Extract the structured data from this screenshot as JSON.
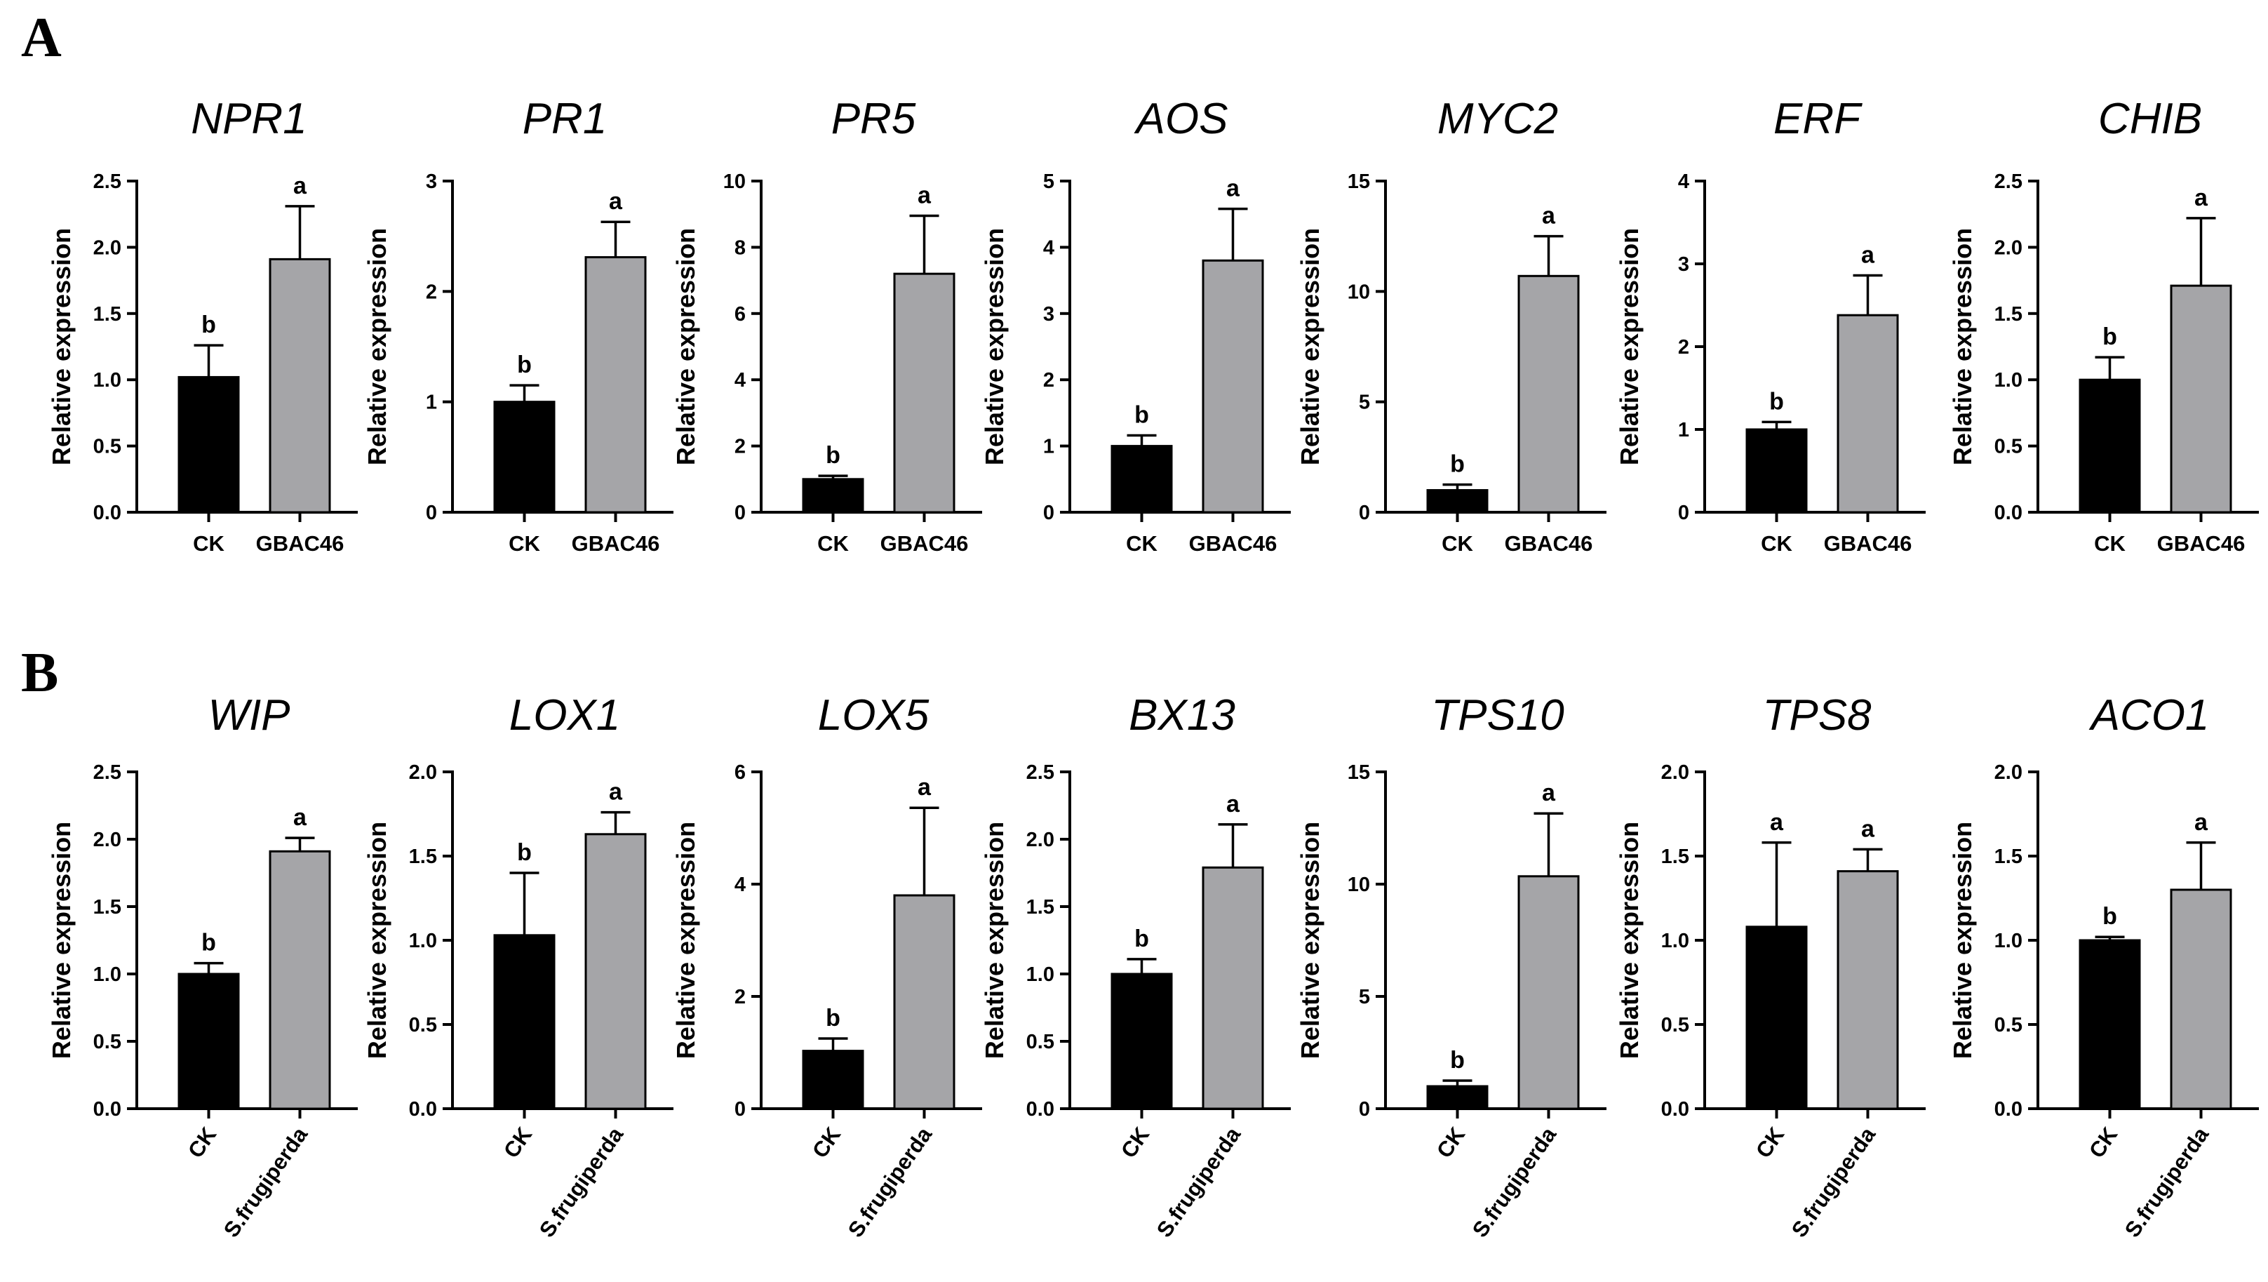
{
  "panels": [
    {
      "label": "A"
    },
    {
      "label": "B"
    }
  ],
  "axis_label": "Relative expression",
  "colors": {
    "CK": "#000000",
    "treatment": "#a5a5a8",
    "axis": "#000000"
  },
  "chart_data": [
    {
      "type": "bar",
      "panel": "A",
      "title": "NPR1",
      "ylabel": "Relative expression",
      "categories": [
        "CK",
        "GBAC46"
      ],
      "values": [
        1.02,
        1.91
      ],
      "errors": [
        0.24,
        0.4
      ],
      "significance": [
        "b",
        "a"
      ],
      "ylim": [
        0,
        2.5
      ],
      "yticks": [
        "0.0",
        "0.5",
        "1.0",
        "1.5",
        "2.0",
        "2.5"
      ],
      "xlabel_rotated": false
    },
    {
      "type": "bar",
      "panel": "A",
      "title": "PR1",
      "ylabel": "Relative expression",
      "categories": [
        "CK",
        "GBAC46"
      ],
      "values": [
        1.0,
        2.31
      ],
      "errors": [
        0.15,
        0.32
      ],
      "significance": [
        "b",
        "a"
      ],
      "ylim": [
        0,
        3
      ],
      "yticks": [
        "0",
        "1",
        "2",
        "3"
      ],
      "xlabel_rotated": false
    },
    {
      "type": "bar",
      "panel": "A",
      "title": "PR5",
      "ylabel": "Relative expression",
      "categories": [
        "CK",
        "GBAC46"
      ],
      "values": [
        1.0,
        7.2
      ],
      "errors": [
        0.1,
        1.75
      ],
      "significance": [
        "b",
        "a"
      ],
      "ylim": [
        0,
        10
      ],
      "yticks": [
        "0",
        "2",
        "4",
        "6",
        "8",
        "10"
      ],
      "xlabel_rotated": false
    },
    {
      "type": "bar",
      "panel": "A",
      "title": "AOS",
      "ylabel": "Relative expression",
      "categories": [
        "CK",
        "GBAC46"
      ],
      "values": [
        1.0,
        3.8
      ],
      "errors": [
        0.16,
        0.78
      ],
      "significance": [
        "b",
        "a"
      ],
      "ylim": [
        0,
        5
      ],
      "yticks": [
        "0",
        "1",
        "2",
        "3",
        "4",
        "5"
      ],
      "xlabel_rotated": false
    },
    {
      "type": "bar",
      "panel": "A",
      "title": "MYC2",
      "ylabel": "Relative expression",
      "categories": [
        "CK",
        "GBAC46"
      ],
      "values": [
        1.0,
        10.7
      ],
      "errors": [
        0.25,
        1.8
      ],
      "significance": [
        "b",
        "a"
      ],
      "ylim": [
        0,
        15
      ],
      "yticks": [
        "0",
        "5",
        "10",
        "15"
      ],
      "xlabel_rotated": false
    },
    {
      "type": "bar",
      "panel": "A",
      "title": "ERF",
      "ylabel": "Relative expression",
      "categories": [
        "CK",
        "GBAC46"
      ],
      "values": [
        1.0,
        2.38
      ],
      "errors": [
        0.09,
        0.48
      ],
      "significance": [
        "b",
        "a"
      ],
      "ylim": [
        0,
        4
      ],
      "yticks": [
        "0",
        "1",
        "2",
        "3",
        "4"
      ],
      "xlabel_rotated": false
    },
    {
      "type": "bar",
      "panel": "A",
      "title": "CHIB",
      "ylabel": "Relative expression",
      "categories": [
        "CK",
        "GBAC46"
      ],
      "values": [
        1.0,
        1.71
      ],
      "errors": [
        0.17,
        0.51
      ],
      "significance": [
        "b",
        "a"
      ],
      "ylim": [
        0,
        2.5
      ],
      "yticks": [
        "0.0",
        "0.5",
        "1.0",
        "1.5",
        "2.0",
        "2.5"
      ],
      "xlabel_rotated": false
    },
    {
      "type": "bar",
      "panel": "B",
      "title": "WIP",
      "ylabel": "Relative expression",
      "categories": [
        "CK",
        "S.frugiperda"
      ],
      "values": [
        1.0,
        1.91
      ],
      "errors": [
        0.08,
        0.1
      ],
      "significance": [
        "b",
        "a"
      ],
      "ylim": [
        0,
        2.5
      ],
      "yticks": [
        "0.0",
        "0.5",
        "1.0",
        "1.5",
        "2.0",
        "2.5"
      ],
      "xlabel_rotated": true
    },
    {
      "type": "bar",
      "panel": "B",
      "title": "LOX1",
      "ylabel": "Relative expression",
      "categories": [
        "CK",
        "S.frugiperda"
      ],
      "values": [
        1.03,
        1.63
      ],
      "errors": [
        0.37,
        0.13
      ],
      "significance": [
        "b",
        "a"
      ],
      "ylim": [
        0,
        2.0
      ],
      "yticks": [
        "0.0",
        "0.5",
        "1.0",
        "1.5",
        "2.0"
      ],
      "xlabel_rotated": true
    },
    {
      "type": "bar",
      "panel": "B",
      "title": "LOX5",
      "ylabel": "Relative expression",
      "categories": [
        "CK",
        "S.frugiperda"
      ],
      "values": [
        1.03,
        3.8
      ],
      "errors": [
        0.22,
        1.56
      ],
      "significance": [
        "b",
        "a"
      ],
      "ylim": [
        0,
        6
      ],
      "yticks": [
        "0",
        "2",
        "4",
        "6"
      ],
      "xlabel_rotated": true
    },
    {
      "type": "bar",
      "panel": "B",
      "title": "BX13",
      "ylabel": "Relative expression",
      "categories": [
        "CK",
        "S.frugiperda"
      ],
      "values": [
        1.0,
        1.79
      ],
      "errors": [
        0.11,
        0.32
      ],
      "significance": [
        "b",
        "a"
      ],
      "ylim": [
        0,
        2.5
      ],
      "yticks": [
        "0.0",
        "0.5",
        "1.0",
        "1.5",
        "2.0",
        "2.5"
      ],
      "xlabel_rotated": true
    },
    {
      "type": "bar",
      "panel": "B",
      "title": "TPS10",
      "ylabel": "Relative expression",
      "categories": [
        "CK",
        "S.frugiperda"
      ],
      "values": [
        1.0,
        10.35
      ],
      "errors": [
        0.25,
        2.8
      ],
      "significance": [
        "b",
        "a"
      ],
      "ylim": [
        0,
        15
      ],
      "yticks": [
        "0",
        "5",
        "10",
        "15"
      ],
      "xlabel_rotated": true
    },
    {
      "type": "bar",
      "panel": "B",
      "title": "TPS8",
      "ylabel": "Relative expression",
      "categories": [
        "CK",
        "S.frugiperda"
      ],
      "values": [
        1.08,
        1.41
      ],
      "errors": [
        0.5,
        0.13
      ],
      "significance": [
        "a",
        "a"
      ],
      "ylim": [
        0,
        2.0
      ],
      "yticks": [
        "0.0",
        "0.5",
        "1.0",
        "1.5",
        "2.0"
      ],
      "xlabel_rotated": true
    },
    {
      "type": "bar",
      "panel": "B",
      "title": "ACO1",
      "ylabel": "Relative expression",
      "categories": [
        "CK",
        "S.frugiperda"
      ],
      "values": [
        1.0,
        1.3
      ],
      "errors": [
        0.02,
        0.28
      ],
      "significance": [
        "b",
        "a"
      ],
      "ylim": [
        0,
        2.0
      ],
      "yticks": [
        "0.0",
        "0.5",
        "1.0",
        "1.5",
        "2.0"
      ],
      "xlabel_rotated": true
    }
  ]
}
